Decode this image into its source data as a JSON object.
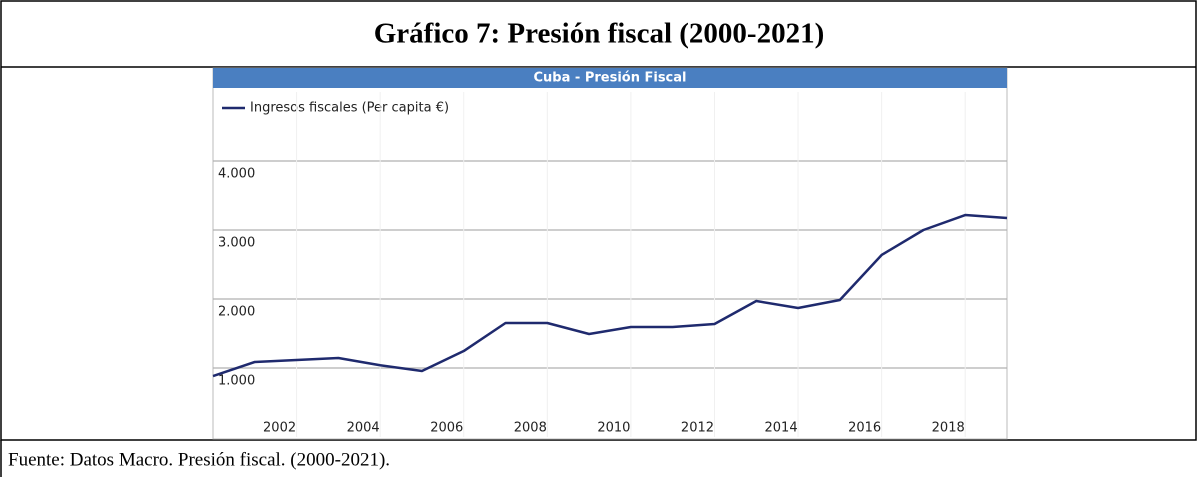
{
  "header": {
    "title": "Gráfico 7: Presión fiscal (2000-2021)"
  },
  "chart_data": {
    "type": "line",
    "title": "Cuba - Presión Fiscal",
    "x": [
      2000,
      2001,
      2002,
      2003,
      2004,
      2005,
      2006,
      2007,
      2008,
      2009,
      2010,
      2011,
      2012,
      2013,
      2014,
      2015,
      2016,
      2017,
      2018,
      2019
    ],
    "series": [
      {
        "name": "Ingresos fiscales (Per capita €)",
        "color": "#1f2a6e",
        "values": [
          884,
          1087,
          1116,
          1145,
          1040,
          957,
          1246,
          1652,
          1652,
          1493,
          1594,
          1594,
          1638,
          1971,
          1870,
          1986,
          2638,
          3000,
          3217,
          3174
        ]
      }
    ],
    "xlim": [
      2000,
      2019
    ],
    "xticks": [
      2002,
      2004,
      2006,
      2008,
      2010,
      2012,
      2014,
      2016,
      2018
    ],
    "ylim": [
      0,
      5000
    ],
    "yticks": [
      {
        "value": 1000,
        "label": "1.000"
      },
      {
        "value": 2000,
        "label": "2.000"
      },
      {
        "value": 3000,
        "label": "3.000"
      },
      {
        "value": 4000,
        "label": "4.000"
      }
    ],
    "grid": true
  },
  "footer": {
    "source": "Fuente: Datos Macro. Presión fiscal. (2000-2021)."
  }
}
